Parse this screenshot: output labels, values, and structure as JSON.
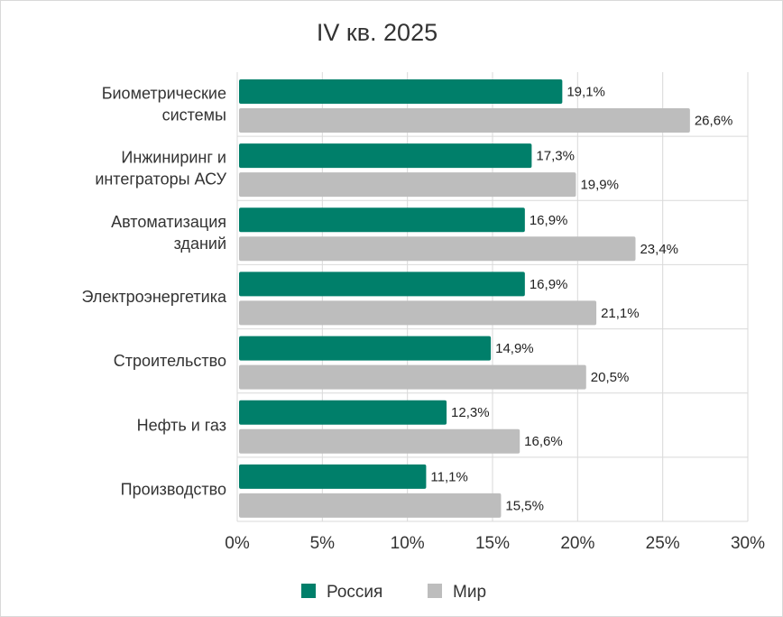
{
  "chart_data": {
    "type": "bar",
    "orientation": "horizontal",
    "title": "IV кв. 2025",
    "xlabel": "",
    "ylabel": "",
    "categories": [
      [
        "Биометрические",
        "системы"
      ],
      [
        "Инжиниринг и",
        "интеграторы АСУ"
      ],
      [
        "Автоматизация",
        "зданий"
      ],
      [
        "Электроэнергетика"
      ],
      [
        "Строительство"
      ],
      [
        "Нефть и газ"
      ],
      [
        "Производство"
      ]
    ],
    "series": [
      {
        "name": "Россия",
        "color": "#007f6a",
        "values": [
          19.1,
          17.3,
          16.9,
          16.9,
          14.9,
          12.3,
          11.1
        ],
        "labels": [
          "19,1%",
          "17,3%",
          "16,9%",
          "16,9%",
          "14,9%",
          "12,3%",
          "11,1%"
        ]
      },
      {
        "name": "Мир",
        "color": "#bdbdbd",
        "values": [
          26.6,
          19.9,
          23.4,
          21.1,
          20.5,
          16.6,
          15.5
        ],
        "labels": [
          "26,6%",
          "19,9%",
          "23,4%",
          "21,1%",
          "20,5%",
          "16,6%",
          "15,5%"
        ]
      }
    ],
    "xlim": [
      0,
      30
    ],
    "xticks": [
      0,
      5,
      10,
      15,
      20,
      25,
      30
    ],
    "xtick_labels": [
      "0%",
      "5%",
      "10%",
      "15%",
      "20%",
      "25%",
      "30%"
    ],
    "grid": true,
    "legend_position": "bottom"
  }
}
